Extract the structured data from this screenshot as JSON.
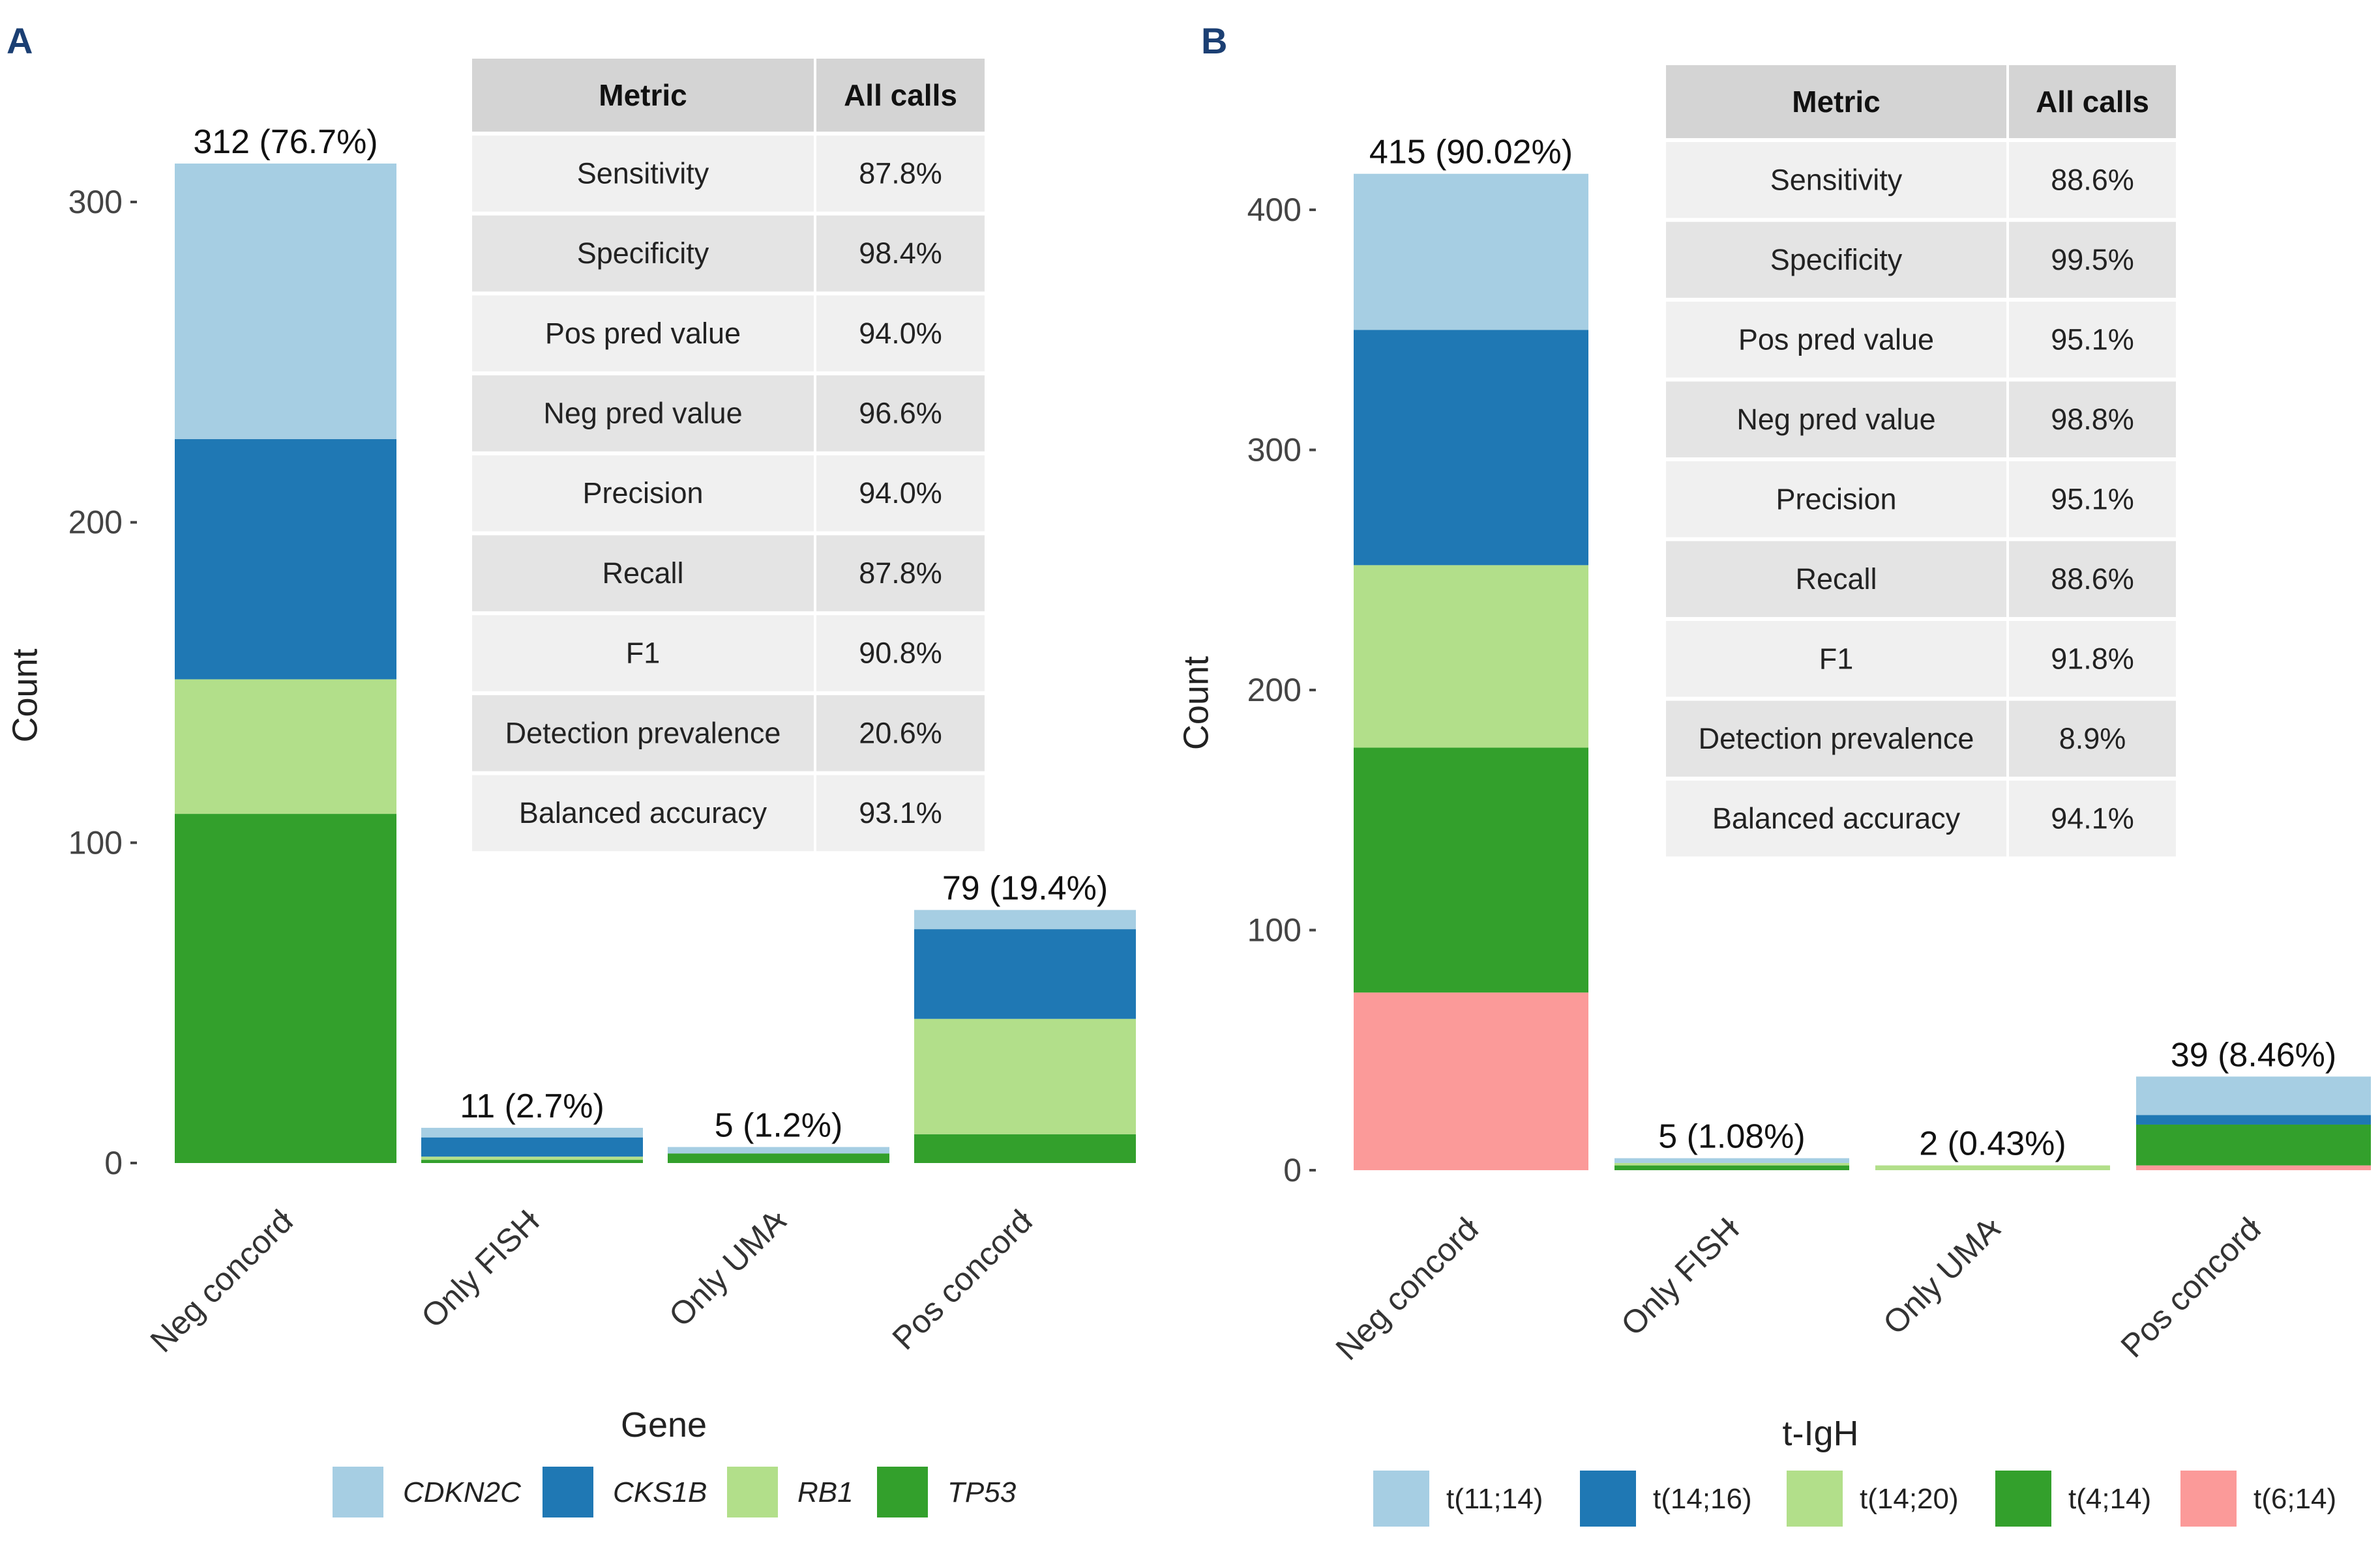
{
  "panels": [
    {
      "letter": "A"
    },
    {
      "letter": "B"
    }
  ],
  "chart_data": [
    {
      "type": "bar",
      "panel": "A",
      "stacked": true,
      "xlabel": "Gene",
      "ylabel": "Count",
      "ylim": [
        0,
        330
      ],
      "yticks": [
        0,
        100,
        200,
        300
      ],
      "categories": [
        "Neg concord",
        "Only FISH",
        "Only UMA",
        "Pos concord"
      ],
      "bar_labels": [
        "312 (76.7%)",
        "11 (2.7%)",
        "5 (1.2%)",
        "79 (19.4%)"
      ],
      "series": [
        {
          "name": "TP53",
          "color": "#33a02c",
          "values": [
            109,
            1,
            3,
            9
          ]
        },
        {
          "name": "RB1",
          "color": "#b2df8a",
          "values": [
            42,
            1,
            0,
            36
          ]
        },
        {
          "name": "CKS1B",
          "color": "#1f78b4",
          "values": [
            75,
            6,
            0,
            28
          ]
        },
        {
          "name": "CDKN2C",
          "color": "#a6cee3",
          "values": [
            86,
            3,
            2,
            6
          ]
        }
      ],
      "legend_order": [
        "CDKN2C",
        "CKS1B",
        "RB1",
        "TP53"
      ],
      "legend_italic": true,
      "legend_position": "bottom",
      "table": {
        "headers": [
          "Metric",
          "All calls"
        ],
        "rows": [
          [
            "Sensitivity",
            "87.8%"
          ],
          [
            "Specificity",
            "98.4%"
          ],
          [
            "Pos pred value",
            "94.0%"
          ],
          [
            "Neg pred value",
            "96.6%"
          ],
          [
            "Precision",
            "94.0%"
          ],
          [
            "Recall",
            "87.8%"
          ],
          [
            "F1",
            "90.8%"
          ],
          [
            "Detection prevalence",
            "20.6%"
          ],
          [
            "Balanced accuracy",
            "93.1%"
          ]
        ]
      }
    },
    {
      "type": "bar",
      "panel": "B",
      "stacked": true,
      "xlabel": "t-IgH",
      "ylabel": "Count",
      "ylim": [
        0,
        435
      ],
      "yticks": [
        0,
        100,
        200,
        300,
        400
      ],
      "categories": [
        "Neg concord",
        "Only FISH",
        "Only UMA",
        "Pos concord"
      ],
      "bar_labels": [
        "415 (90.02%)",
        "5 (1.08%)",
        "2 (0.43%)",
        "39 (8.46%)"
      ],
      "series": [
        {
          "name": "t(6;14)",
          "color": "#fb9a99",
          "values": [
            74,
            0,
            0,
            2
          ]
        },
        {
          "name": "t(4;14)",
          "color": "#33a02c",
          "values": [
            102,
            2,
            0,
            17
          ]
        },
        {
          "name": "t(14;20)",
          "color": "#b2df8a",
          "values": [
            76,
            1,
            2,
            0
          ]
        },
        {
          "name": "t(14;16)",
          "color": "#1f78b4",
          "values": [
            98,
            0,
            0,
            4
          ]
        },
        {
          "name": "t(11;14)",
          "color": "#a6cee3",
          "values": [
            65,
            2,
            0,
            16
          ]
        }
      ],
      "legend_order": [
        "t(11;14)",
        "t(14;16)",
        "t(14;20)",
        "t(4;14)",
        "t(6;14)"
      ],
      "legend_italic": false,
      "legend_position": "bottom",
      "table": {
        "headers": [
          "Metric",
          "All calls"
        ],
        "rows": [
          [
            "Sensitivity",
            "88.6%"
          ],
          [
            "Specificity",
            "99.5%"
          ],
          [
            "Pos pred value",
            "95.1%"
          ],
          [
            "Neg pred value",
            "98.8%"
          ],
          [
            "Precision",
            "95.1%"
          ],
          [
            "Recall",
            "88.6%"
          ],
          [
            "F1",
            "91.8%"
          ],
          [
            "Detection prevalence",
            "8.9%"
          ],
          [
            "Balanced accuracy",
            "94.1%"
          ]
        ]
      }
    }
  ]
}
